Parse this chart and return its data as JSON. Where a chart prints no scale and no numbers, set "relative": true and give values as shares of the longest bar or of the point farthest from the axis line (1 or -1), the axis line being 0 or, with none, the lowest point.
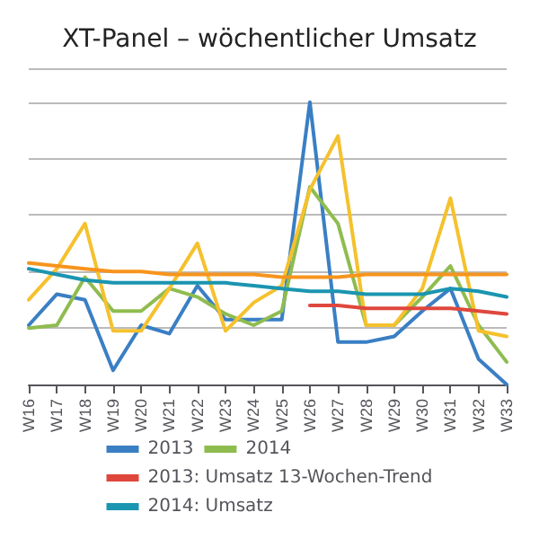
{
  "chart_data": {
    "type": "line",
    "title": "XT-Panel – wöchentlicher Umsatz",
    "categories": [
      "W16",
      "W17",
      "W18",
      "W19",
      "W20",
      "W21",
      "W22",
      "W23",
      "W24",
      "W25",
      "W26",
      "W27",
      "W28",
      "W29",
      "W30",
      "W31",
      "W32",
      "W33"
    ],
    "relative": true,
    "grid": "y",
    "legend": "bottom",
    "marker": "none",
    "line_style": "solid",
    "series": [
      {
        "name": "2013",
        "color": "#3a7fc4",
        "values": [
          0.21,
          0.32,
          0.3,
          0.05,
          0.21,
          0.18,
          0.35,
          0.23,
          0.23,
          0.23,
          1.0,
          0.15,
          0.15,
          0.17,
          0.26,
          0.34,
          0.09,
          0.0
        ]
      },
      {
        "name": "2014",
        "color": "#8fbc4f",
        "values": [
          0.2,
          0.21,
          0.38,
          0.26,
          0.26,
          0.34,
          0.31,
          0.25,
          0.21,
          0.26,
          0.7,
          0.57,
          0.21,
          0.21,
          0.31,
          0.42,
          0.21,
          0.08
        ]
      },
      {
        "color": "#f5c12e",
        "values": [
          0.3,
          0.41,
          0.57,
          0.19,
          0.19,
          0.34,
          0.5,
          0.19,
          0.29,
          0.35,
          0.69,
          0.88,
          0.21,
          0.21,
          0.34,
          0.66,
          0.19,
          0.17
        ]
      },
      {
        "color": "#f7941d",
        "values": [
          0.43,
          0.42,
          0.41,
          0.4,
          0.4,
          0.39,
          0.39,
          0.39,
          0.39,
          0.38,
          0.38,
          0.38,
          0.39,
          0.39,
          0.39,
          0.39,
          0.39,
          0.39
        ]
      },
      {
        "name": "2013: Umsatz 13-Wochen-Trend",
        "color": "#e0473c",
        "values": [
          null,
          null,
          null,
          null,
          null,
          null,
          null,
          null,
          null,
          null,
          0.28,
          0.28,
          0.27,
          0.27,
          0.27,
          0.27,
          0.26,
          0.25
        ]
      },
      {
        "name": "2014: Umsatz",
        "color": "#1b95b0",
        "values": [
          0.41,
          0.39,
          0.37,
          0.36,
          0.36,
          0.36,
          0.36,
          0.36,
          0.35,
          0.34,
          0.33,
          0.33,
          0.32,
          0.32,
          0.32,
          0.34,
          0.33,
          0.31
        ]
      }
    ]
  }
}
